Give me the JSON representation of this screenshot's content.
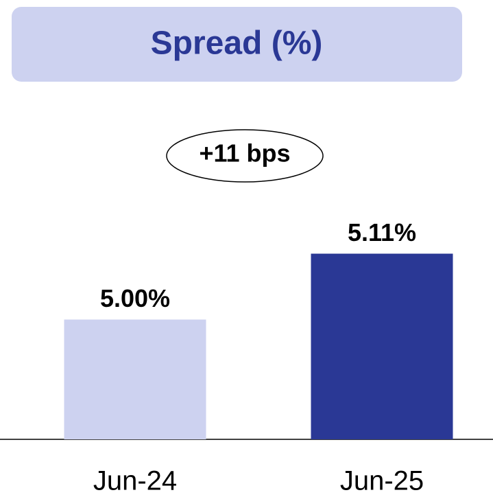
{
  "chart_data": {
    "type": "bar",
    "title": "Spread (%)",
    "annotation": "+11 bps",
    "categories": [
      "Jun-24",
      "Jun-25"
    ],
    "series": [
      {
        "name": null,
        "colors": [
          "#cdd2f0",
          "#2a3895"
        ],
        "values": [
          5.0,
          5.11
        ],
        "value_labels": [
          "5.00%",
          "5.11%"
        ]
      }
    ],
    "ylim": [
      4.8,
      5.2
    ]
  }
}
